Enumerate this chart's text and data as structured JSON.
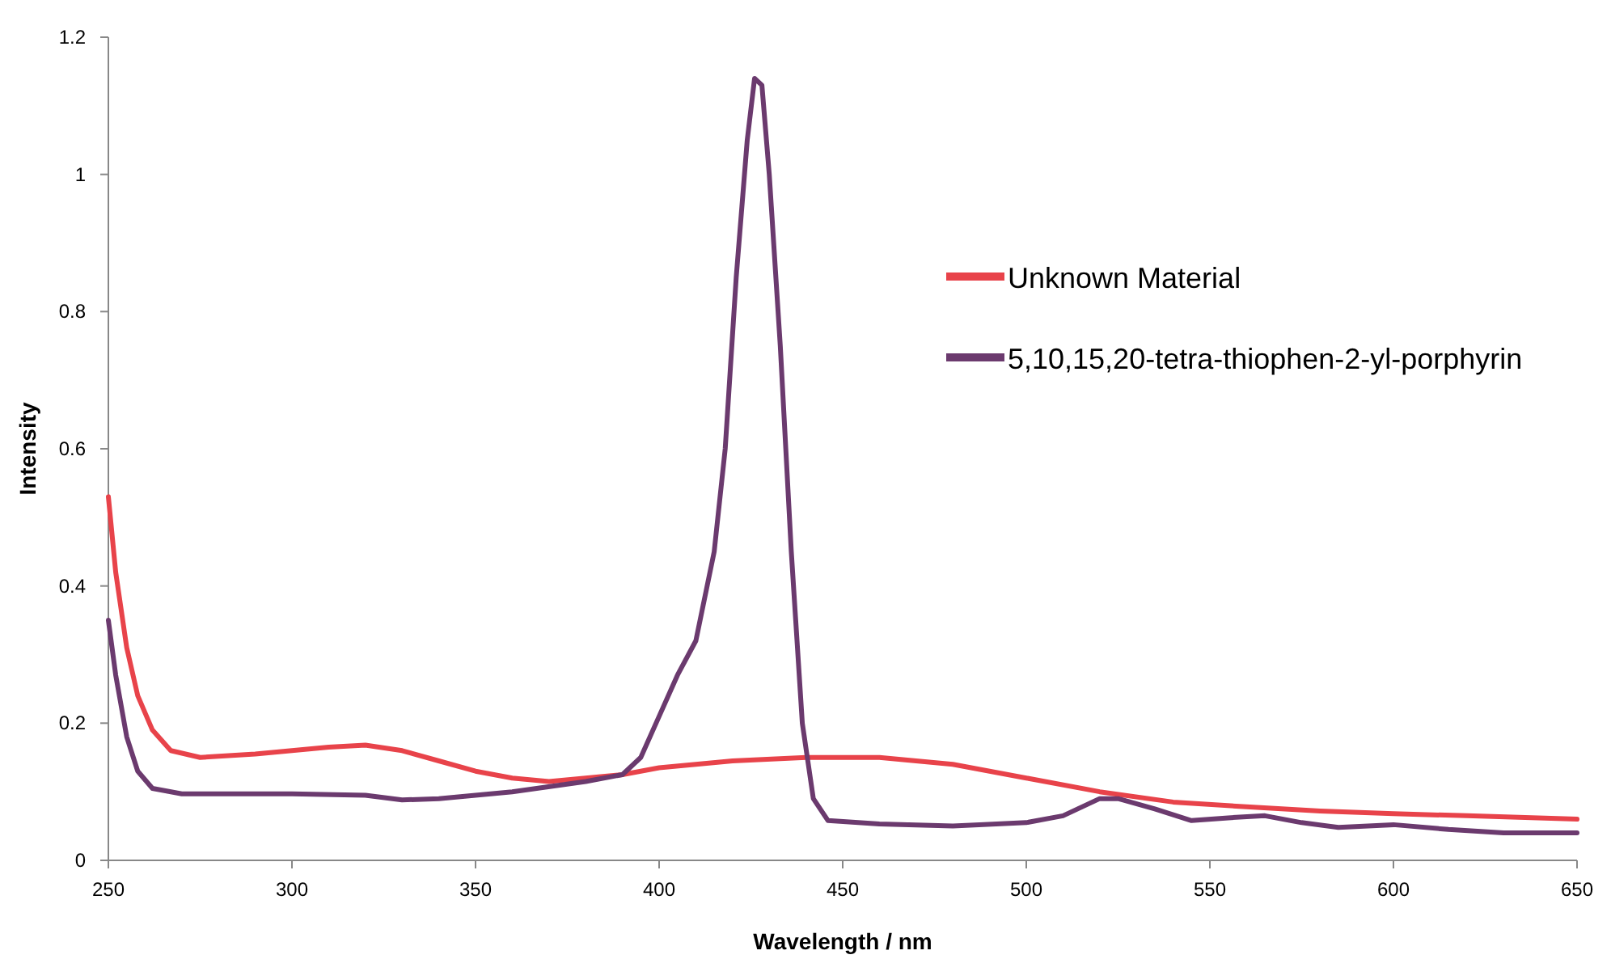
{
  "chart_data": {
    "type": "line",
    "xlabel": "Wavelength / nm",
    "ylabel": "Intensity",
    "xlim": [
      250,
      650
    ],
    "xticks": [
      250,
      300,
      350,
      400,
      450,
      500,
      550,
      600,
      650
    ],
    "ylim": [
      0,
      1.2
    ],
    "yticks": [
      0,
      0.2,
      0.4,
      0.6,
      0.8,
      1,
      1.2
    ],
    "grid": false,
    "legend": "top right",
    "marker": "none",
    "line_style": "solid",
    "series": [
      {
        "name": "Unknown Material",
        "color": "#e8434a",
        "x": [
          250,
          252,
          255,
          258,
          262,
          267,
          275,
          290,
          300,
          310,
          320,
          330,
          340,
          350,
          360,
          370,
          380,
          390,
          400,
          420,
          440,
          460,
          480,
          500,
          520,
          540,
          560,
          580,
          600,
          620,
          650
        ],
        "values": [
          0.53,
          0.42,
          0.31,
          0.24,
          0.19,
          0.16,
          0.15,
          0.155,
          0.16,
          0.165,
          0.168,
          0.16,
          0.145,
          0.13,
          0.12,
          0.115,
          0.12,
          0.125,
          0.135,
          0.145,
          0.15,
          0.15,
          0.14,
          0.12,
          0.1,
          0.085,
          0.078,
          0.072,
          0.068,
          0.065,
          0.06
        ]
      },
      {
        "name": "5,10,15,20-tetra-thiophen-2-yl-porphyrin",
        "color": "#6b3a6e",
        "x": [
          250,
          252,
          255,
          258,
          262,
          270,
          300,
          320,
          330,
          340,
          360,
          380,
          390,
          395,
          400,
          405,
          410,
          415,
          418,
          421,
          424,
          426,
          428,
          430,
          433,
          436,
          439,
          442,
          446,
          460,
          480,
          500,
          510,
          520,
          525,
          535,
          545,
          555,
          565,
          575,
          585,
          600,
          615,
          630,
          650
        ],
        "values": [
          0.35,
          0.27,
          0.18,
          0.13,
          0.105,
          0.097,
          0.097,
          0.095,
          0.088,
          0.09,
          0.1,
          0.115,
          0.125,
          0.15,
          0.21,
          0.27,
          0.32,
          0.45,
          0.6,
          0.85,
          1.05,
          1.14,
          1.13,
          1,
          0.75,
          0.45,
          0.2,
          0.09,
          0.058,
          0.053,
          0.05,
          0.055,
          0.065,
          0.09,
          0.09,
          0.075,
          0.058,
          0.062,
          0.065,
          0.055,
          0.048,
          0.052,
          0.045,
          0.04,
          0.04
        ]
      }
    ]
  }
}
